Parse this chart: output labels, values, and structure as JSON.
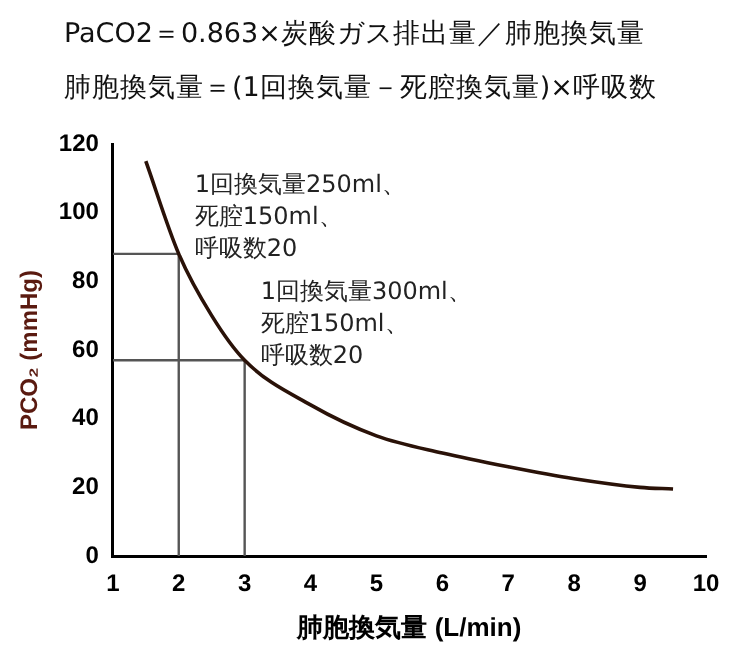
{
  "chart_data": {
    "type": "line",
    "title": "PaCO2＝0.863×炭酸ガス排出量／肺胞換気量",
    "subtitle": "肺胞換気量＝(1回換気量－死腔換気量)×呼吸数",
    "xlabel": "肺胞換気量 (L/min)",
    "ylabel": "PCO₂ (mmHg)",
    "xlim": [
      1,
      10
    ],
    "xticks": [
      1,
      2,
      3,
      4,
      5,
      6,
      7,
      8,
      9,
      10
    ],
    "ylim": [
      0,
      120
    ],
    "yticks": [
      0,
      20,
      40,
      60,
      80,
      100,
      120
    ],
    "series": [
      {
        "color": "#2a1208",
        "x": [
          1.5,
          2,
          2.5,
          3,
          4,
          5,
          6,
          7,
          8,
          9,
          9.5
        ],
        "values": [
          115,
          88,
          70,
          57,
          44,
          35,
          30,
          26,
          22.5,
          20,
          19.5
        ]
      },
      {
        "color": "#555555",
        "x": [
          1,
          2,
          2
        ],
        "values": [
          88,
          88,
          0
        ]
      },
      {
        "color": "#555555",
        "x": [
          1,
          3,
          3
        ],
        "values": [
          57,
          57,
          0
        ]
      }
    ],
    "annotations": [
      {
        "text": "1回換気量250ml、死腔150ml、呼吸数20",
        "x": 2,
        "y": 88
      },
      {
        "text": "1回換気量300ml、死腔150ml、呼吸数20",
        "x": 3,
        "y": 57
      }
    ],
    "grid": false,
    "legend": false,
    "marker": "none",
    "line_style": "solid"
  }
}
